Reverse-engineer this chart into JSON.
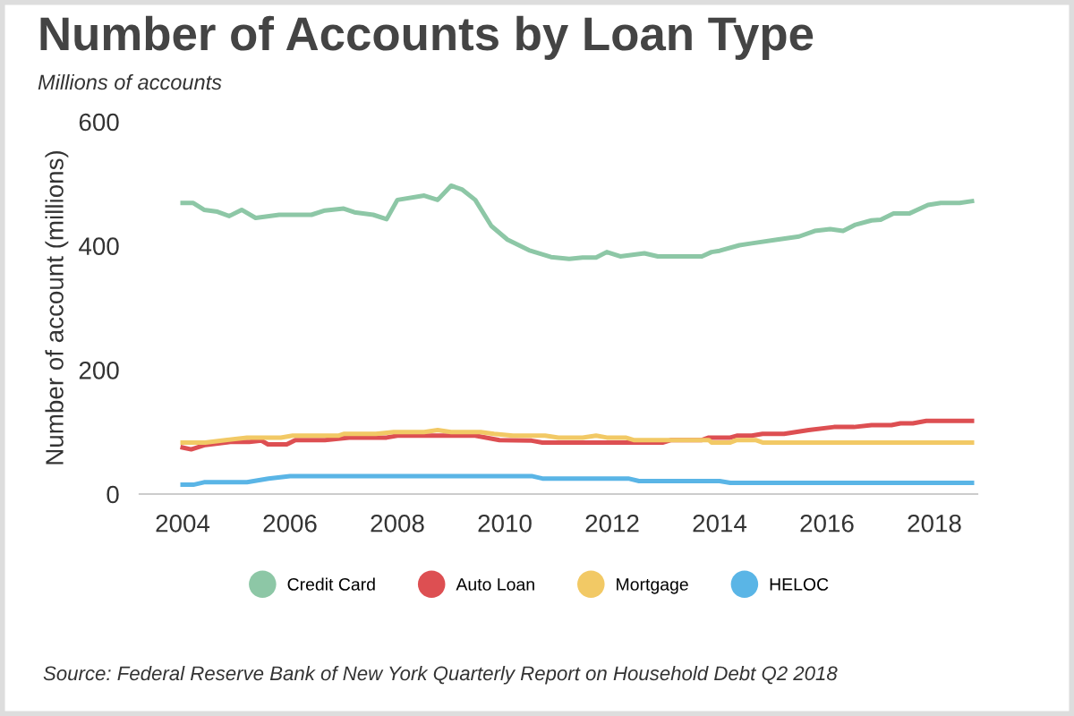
{
  "chart_data": {
    "type": "line",
    "title": "Number of Accounts by Loan Type",
    "subtitle": "Millions of accounts",
    "ylabel": "Number of account (millions)",
    "annotations": [
      "Source: Federal Reserve Bank of New York Quarterly Report on Household Debt Q2 2018"
    ],
    "xlim": [
      2003.2,
      2018.8
    ],
    "xticks": [
      2004,
      2006,
      2008,
      2010,
      2012,
      2014,
      2016,
      2018
    ],
    "ylim": [
      0,
      600
    ],
    "yticks": [
      0,
      200,
      400,
      600
    ],
    "grid": false,
    "legend": "bottom",
    "marker": "none",
    "line_style": "solid",
    "series": [
      {
        "name": "Credit Card",
        "color": "#8dc7a6",
        "x": [
          2004,
          2004.2,
          2004.4,
          2004.65,
          2004.87,
          2005.1,
          2005.36,
          2005.8,
          2006.4,
          2006.65,
          2007.0,
          2007.2,
          2007.55,
          2007.8,
          2008.0,
          2008.5,
          2008.75,
          2009.0,
          2009.2,
          2009.45,
          2009.75,
          2010.05,
          2010.45,
          2010.86,
          2011.2,
          2011.45,
          2011.7,
          2011.9,
          2012.15,
          2012.6,
          2012.85,
          2013.67,
          2013.85,
          2014.0,
          2014.37,
          2014.6,
          2015.07,
          2015.48,
          2015.77,
          2016.06,
          2016.3,
          2016.53,
          2016.83,
          2017.0,
          2017.24,
          2017.53,
          2017.88,
          2018.12,
          2018.47,
          2018.7
        ],
        "values": [
          469,
          469,
          458,
          455,
          448,
          458,
          445,
          450,
          450,
          457,
          460,
          454,
          450,
          443,
          474,
          481,
          474,
          497,
          491,
          474,
          432,
          410,
          393,
          382,
          379,
          381,
          381,
          390,
          383,
          388,
          383,
          383,
          390,
          392,
          401,
          404,
          410,
          415,
          424,
          427,
          424,
          434,
          441,
          442,
          452,
          452,
          466,
          469,
          469,
          472
        ]
      },
      {
        "name": "Auto Loan",
        "color": "#dd4f52",
        "x": [
          2004,
          2004.16,
          2004.42,
          2004.89,
          2005.24,
          2005.47,
          2005.59,
          2005.94,
          2006.1,
          2006.65,
          2007.1,
          2007.8,
          2008.0,
          2009.45,
          2009.9,
          2010.5,
          2010.7,
          2012.95,
          2013.1,
          2013.67,
          2013.8,
          2014.2,
          2014.32,
          2014.6,
          2014.8,
          2015.2,
          2015.66,
          2016.13,
          2016.5,
          2016.83,
          2017.2,
          2017.37,
          2017.6,
          2017.85,
          2018.12,
          2018.7
        ],
        "values": [
          75,
          72,
          79,
          84,
          84,
          86,
          80,
          80,
          87,
          87,
          91,
          91,
          94,
          94,
          87,
          86,
          83,
          83,
          87,
          87,
          91,
          91,
          94,
          94,
          97,
          97,
          103,
          108,
          108,
          111,
          111,
          114,
          114,
          118,
          118,
          118
        ]
      },
      {
        "name": "Mortgage",
        "color": "#f2c965",
        "x": [
          2004,
          2004.42,
          2004.8,
          2005.2,
          2005.83,
          2006.05,
          2006.9,
          2007.0,
          2007.6,
          2007.93,
          2008.5,
          2008.75,
          2009.0,
          2009.55,
          2009.8,
          2010.15,
          2010.75,
          2011.0,
          2011.45,
          2011.7,
          2011.9,
          2012.25,
          2012.4,
          2012.95,
          2013.8,
          2013.85,
          2014.2,
          2014.32,
          2014.67,
          2014.8,
          2018.7
        ],
        "values": [
          83,
          83,
          87,
          91,
          91,
          94,
          94,
          97,
          97,
          100,
          100,
          103,
          100,
          100,
          97,
          94,
          94,
          91,
          91,
          94,
          91,
          91,
          87,
          87,
          87,
          83,
          83,
          87,
          87,
          83,
          83
        ]
      },
      {
        "name": "HELOC",
        "color": "#5ab5e6",
        "x": [
          2004,
          2004.2,
          2004.4,
          2005.2,
          2005.6,
          2006.0,
          2010.5,
          2010.7,
          2012.3,
          2012.5,
          2014.0,
          2014.2,
          2018.7
        ],
        "values": [
          15,
          15,
          19,
          19,
          25,
          29,
          29,
          25,
          25,
          21,
          21,
          18,
          18
        ]
      }
    ]
  }
}
